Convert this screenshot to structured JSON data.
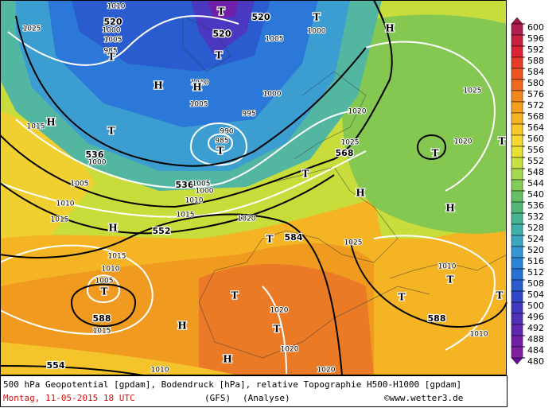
{
  "map": {
    "height_labels": [
      "520",
      "520",
      "520",
      "536",
      "536",
      "552",
      "568",
      "584",
      "588",
      "588",
      "554"
    ],
    "pressure_labels": [
      "1010",
      "1025",
      "1000",
      "1005",
      "985",
      "1000",
      "1005",
      "1010",
      "1005",
      "1000",
      "995",
      "990",
      "985",
      "1000",
      "1015",
      "1005",
      "1010",
      "1015",
      "1005",
      "1000",
      "1010",
      "1015",
      "1020",
      "1020",
      "1025",
      "1025",
      "1020",
      "1025",
      "1015",
      "1010",
      "1005",
      "1010",
      "1015",
      "1020",
      "1020",
      "1010",
      "1020",
      "1010"
    ],
    "centers": [
      "T",
      "T",
      "T",
      "T",
      "H",
      "H",
      "H",
      "T",
      "T",
      "H",
      "T",
      "T",
      "H",
      "H",
      "H",
      "T",
      "T",
      "T",
      "T",
      "H",
      "H",
      "T",
      "T",
      "T",
      "T"
    ]
  },
  "colorbar": {
    "ticks": [
      600,
      596,
      592,
      588,
      584,
      580,
      576,
      572,
      568,
      564,
      560,
      556,
      552,
      548,
      544,
      540,
      536,
      532,
      528,
      524,
      520,
      516,
      512,
      508,
      504,
      500,
      496,
      492,
      488,
      484,
      480
    ],
    "colors": [
      "#b0204f",
      "#c8203f",
      "#dc2434",
      "#e63c2a",
      "#ec5424",
      "#f06a1e",
      "#f4861e",
      "#f69e1e",
      "#f8b424",
      "#f9c82a",
      "#f4d830",
      "#e6e032",
      "#c8e040",
      "#a4d84e",
      "#84cc58",
      "#66c064",
      "#52b878",
      "#46b492",
      "#40b0aa",
      "#3aa6c2",
      "#3496d2",
      "#2c84d8",
      "#2870d8",
      "#2a5cd0",
      "#3048c8",
      "#4038c0",
      "#5030b8",
      "#6028b0",
      "#7020a8",
      "#8020a0"
    ]
  },
  "footer": {
    "description": "500 hPa Geopotential [gpdam], Bodendruck [hPa], relative Topographie H500-H1000 [gpdam]",
    "date": "Montag, 11-05-2015  18 UTC",
    "model": "(GFS)",
    "run": "(Analyse)",
    "credit": "©www.wetter3.de"
  }
}
